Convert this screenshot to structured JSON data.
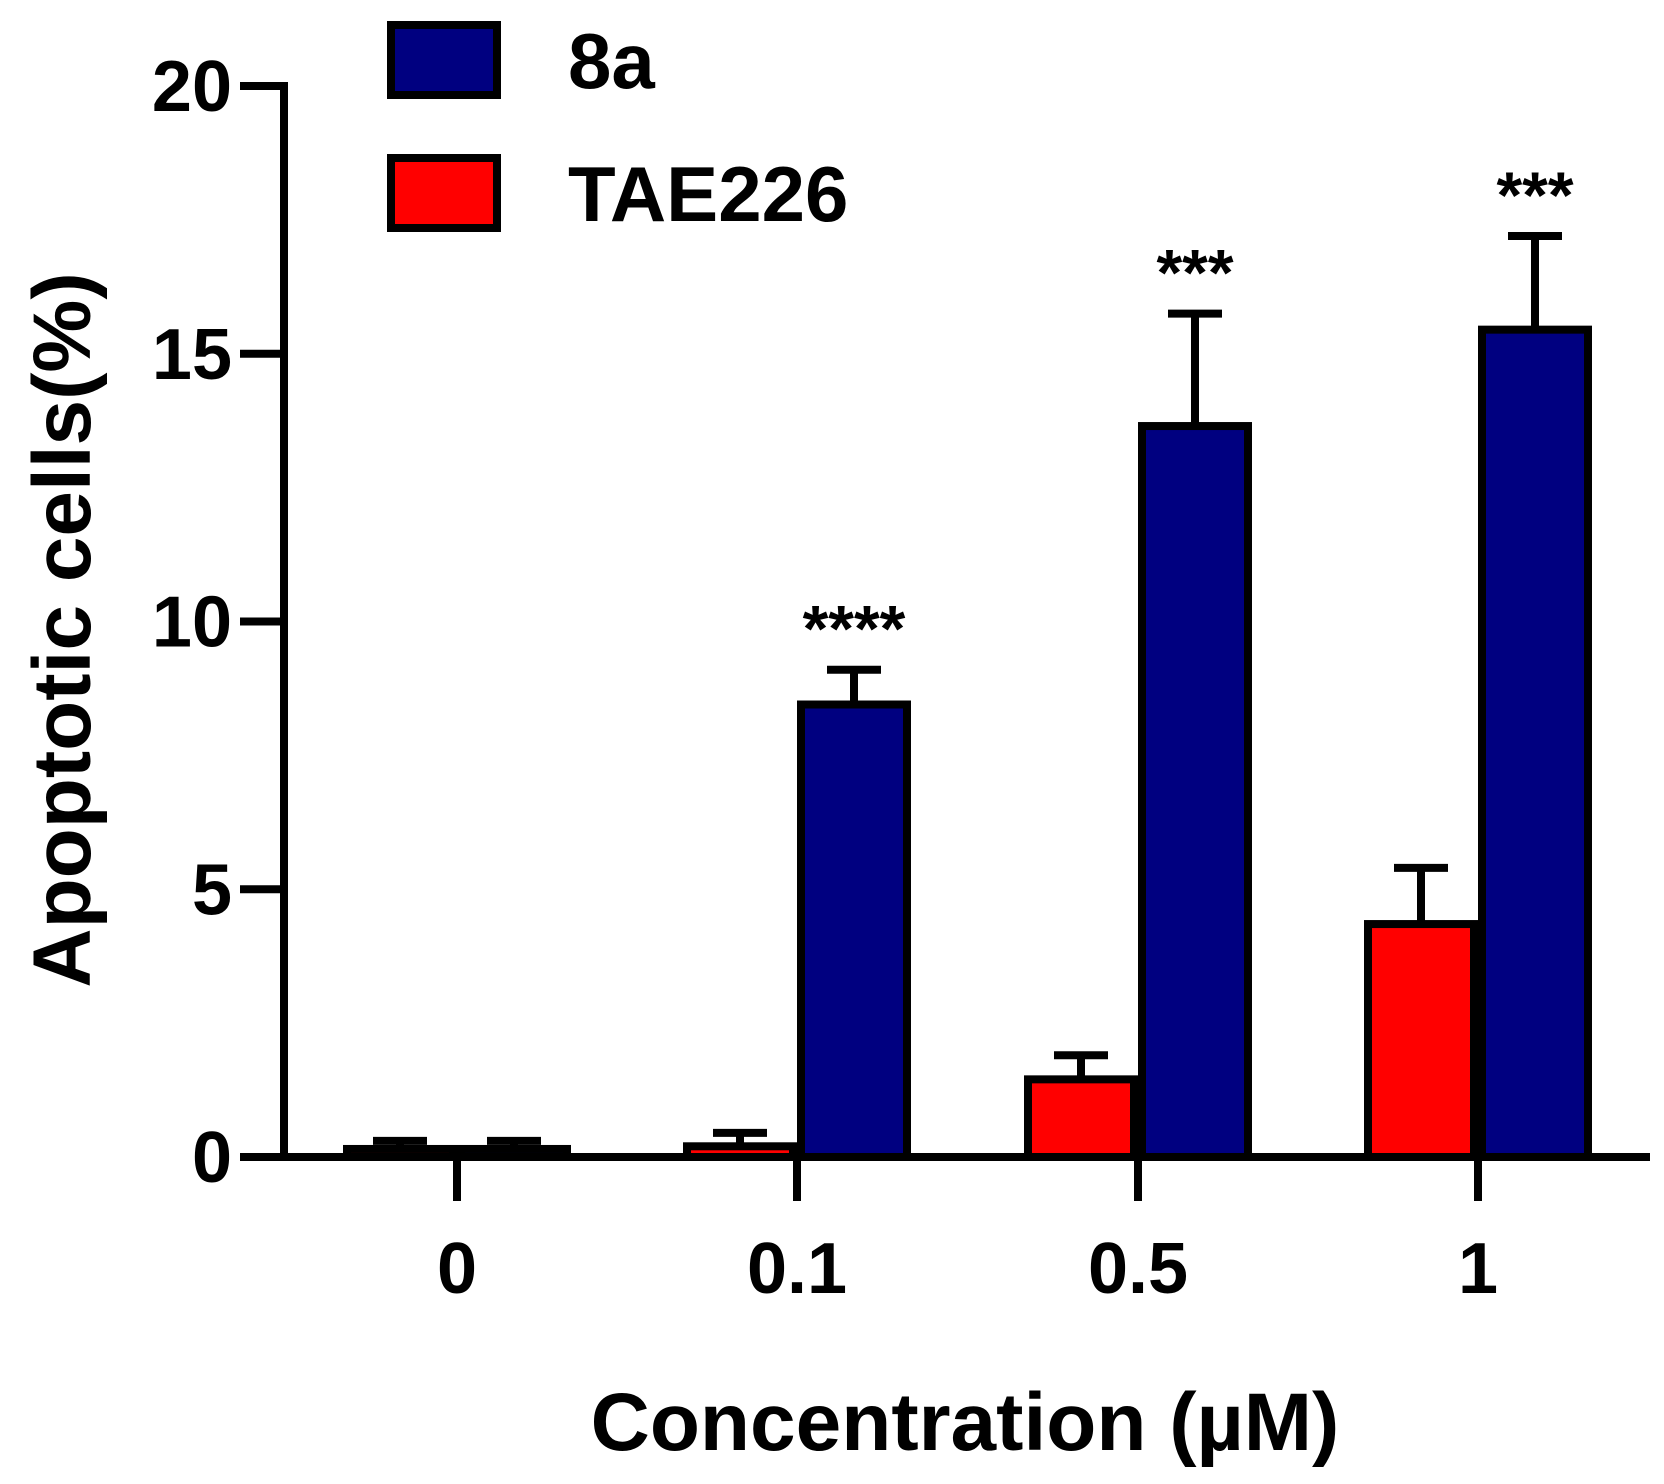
{
  "chart_data": {
    "type": "bar",
    "categories": [
      "0",
      "0.1",
      "0.5",
      "1"
    ],
    "series": [
      {
        "name": "TAE226",
        "color": "#ff0000",
        "values": [
          0.15,
          0.2,
          1.45,
          4.35
        ],
        "errors": [
          0.15,
          0.25,
          0.45,
          1.05
        ]
      },
      {
        "name": "8a",
        "color": "#000080",
        "values": [
          0.15,
          8.45,
          13.65,
          15.45
        ],
        "errors": [
          0.15,
          0.65,
          2.1,
          1.75
        ]
      }
    ],
    "significance": [
      "",
      "****",
      "***",
      "***"
    ],
    "xlabel": "Concentration (µM)",
    "ylabel": "Apoptotic cells(%)",
    "ylim": [
      0,
      20
    ],
    "yticks": [
      "0",
      "5",
      "10",
      "15",
      "20"
    ],
    "legend": {
      "position": "top-left",
      "order": [
        "8a",
        "TAE226"
      ]
    },
    "grid": false
  }
}
